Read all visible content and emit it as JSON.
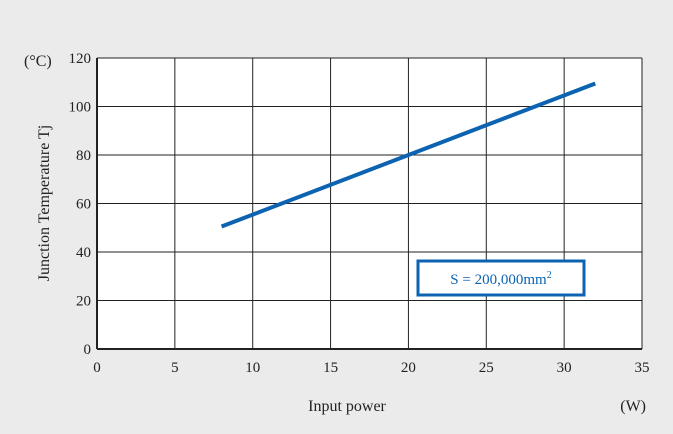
{
  "chart_data": {
    "type": "line",
    "title": "",
    "xlabel": "Input power",
    "ylabel": "Junction Temperature Tj",
    "x_unit": "(W)",
    "y_unit": "(°C)",
    "xlim": [
      0,
      35
    ],
    "ylim": [
      0,
      120
    ],
    "x_ticks": [
      0,
      5,
      10,
      15,
      20,
      25,
      30,
      35
    ],
    "y_ticks": [
      0,
      20,
      40,
      60,
      80,
      100,
      120
    ],
    "grid": true,
    "series": [
      {
        "color": "#0b63b1",
        "x": [
          8,
          20,
          32
        ],
        "y": [
          50.5,
          80,
          109.5
        ]
      }
    ],
    "annotations": [
      {
        "text": "S = 200,000mm",
        "superscript": "2"
      }
    ]
  }
}
